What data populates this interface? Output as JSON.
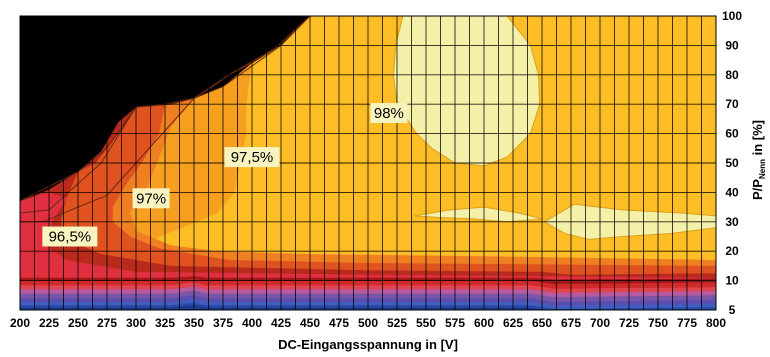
{
  "chart_data": {
    "type": "heatmap",
    "title": "",
    "xlabel": "DC-Eingangsspannung in [V]",
    "ylabel_parts": {
      "base": "P/P",
      "sub": "Nenn",
      "tail": " in [%]"
    },
    "x_ticks": [
      200,
      225,
      250,
      275,
      300,
      325,
      350,
      375,
      400,
      425,
      450,
      475,
      500,
      525,
      550,
      575,
      600,
      625,
      650,
      675,
      700,
      725,
      750,
      775,
      800
    ],
    "y_ticks": [
      5,
      10,
      20,
      30,
      40,
      50,
      60,
      70,
      80,
      90,
      100
    ],
    "xlim": [
      200,
      800
    ],
    "ylim": [
      5,
      100
    ],
    "grid": true,
    "colors": {
      "no_data": "#000000",
      "below_96_5": "#e03040",
      "band_96_5": "#b82a1c",
      "band_96_75": "#e0521f",
      "band_97": "#f07f22",
      "band_97_25": "#f7a020",
      "band_97_5": "#fdbd25",
      "band_98": "#f5f0a8",
      "low_load_stripes": [
        "#a01818",
        "#d02a2a",
        "#e0454f",
        "#b85aa0",
        "#7a55a8",
        "#5a4fb0",
        "#3f5fc0",
        "#2a4aa8",
        "#1e3890"
      ]
    },
    "contours": [
      {
        "level": "96,5%",
        "points": [
          [
            200,
            37
          ],
          [
            250,
            47
          ],
          [
            275,
            55
          ],
          [
            300,
            69
          ],
          [
            330,
            70
          ],
          [
            350,
            72
          ],
          [
            375,
            76
          ],
          [
            425,
            90
          ],
          [
            450,
            100
          ]
        ]
      },
      {
        "level": "97%",
        "points": [
          [
            200,
            33
          ],
          [
            225,
            34
          ],
          [
            250,
            43
          ],
          [
            270,
            50
          ],
          [
            300,
            69
          ],
          [
            325,
            70
          ],
          [
            350,
            72
          ],
          [
            370,
            77
          ],
          [
            380,
            80
          ],
          [
            420,
            89
          ],
          [
            450,
            100
          ]
        ]
      },
      {
        "level": "97,5%",
        "points": [
          [
            200,
            30
          ],
          [
            220,
            30
          ],
          [
            250,
            35
          ],
          [
            275,
            39
          ],
          [
            300,
            50
          ],
          [
            325,
            61
          ],
          [
            350,
            72
          ],
          [
            380,
            80
          ],
          [
            400,
            84
          ],
          [
            420,
            89
          ],
          [
            450,
            100
          ]
        ]
      }
    ],
    "annotations": [
      {
        "text": "96,5%",
        "x": 243,
        "y": 25
      },
      {
        "text": "97%",
        "x": 313,
        "y": 38
      },
      {
        "text": "97,5%",
        "x": 400,
        "y": 52
      },
      {
        "text": "98%",
        "x": 518,
        "y": 67
      }
    ]
  }
}
